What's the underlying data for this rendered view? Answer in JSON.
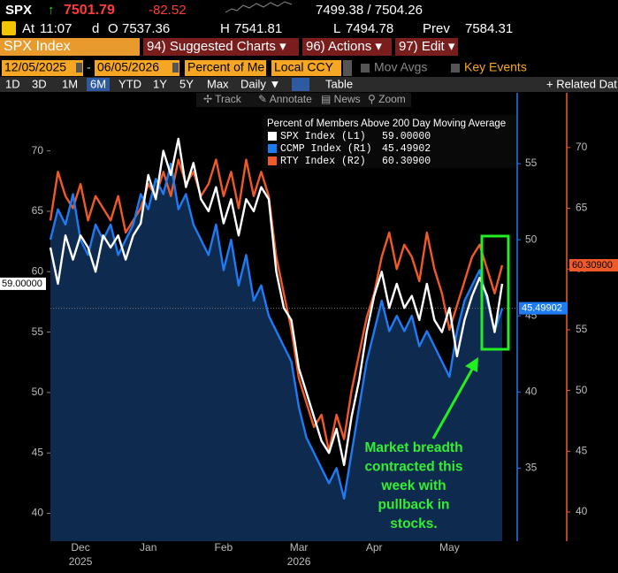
{
  "header": {
    "ticker": "SPX",
    "arrow": "↑",
    "last": "7501.79",
    "change": "-82.52",
    "bid_ask": "7499.38 / 7504.26",
    "at_label": "At",
    "time": "11:07",
    "d": "d",
    "open_label": "O",
    "open": "7537.36",
    "high_label": "H",
    "high": "7541.81",
    "low_label": "L",
    "low": "7494.78",
    "prev_label": "Prev",
    "prev": "7584.31"
  },
  "menu": {
    "security": "SPX Index",
    "tabs": [
      "94) Suggested Charts ▾",
      "96) Actions ▾",
      "97) Edit ▾"
    ]
  },
  "controls": {
    "start_date": "12/05/2025",
    "end_date": "06/05/2026",
    "field": "Percent of Me",
    "currency": "Local CCY",
    "mov_avgs": "Mov Avgs",
    "key_events": "Key Events"
  },
  "periods": {
    "items": [
      "1D",
      "3D",
      "1M",
      "6M",
      "YTD",
      "1Y",
      "5Y",
      "Max"
    ],
    "selected": "6M",
    "frequency": "Daily ▼",
    "table": "Table",
    "related": "+ Related Dat"
  },
  "tools": [
    "✢ Track",
    "✎ Annotate",
    "▤ News",
    "⚲ Zoom"
  ],
  "chart_data": {
    "type": "line",
    "legend_title": "Percent of Members Above 200 Day Moving Average",
    "categories": [
      null,
      null,
      null,
      null,
      "Dec",
      null,
      null,
      null,
      null,
      null,
      null,
      null,
      null,
      "Jan",
      null,
      null,
      null,
      null,
      null,
      null,
      null,
      null,
      null,
      "Feb",
      null,
      null,
      null,
      null,
      null,
      null,
      null,
      null,
      null,
      "Mar",
      null,
      null,
      null,
      null,
      null,
      null,
      null,
      null,
      null,
      "Apr",
      null,
      null,
      null,
      null,
      null,
      null,
      null,
      null,
      null,
      "May",
      null,
      null,
      null,
      null,
      null,
      null,
      null
    ],
    "category_sublabels": [
      null,
      null,
      null,
      null,
      "2025",
      null,
      null,
      null,
      null,
      null,
      null,
      null,
      null,
      null,
      null,
      null,
      null,
      null,
      null,
      null,
      null,
      null,
      null,
      null,
      null,
      null,
      null,
      null,
      null,
      null,
      null,
      null,
      null,
      "2026",
      null,
      null,
      null,
      null,
      null,
      null,
      null,
      null,
      null,
      null,
      null,
      null,
      null,
      null,
      null,
      null,
      null,
      null,
      null,
      null,
      null,
      null,
      null,
      null,
      null,
      null,
      null
    ],
    "series": [
      {
        "name": "SPX Index (L1)",
        "color": "#ffffff",
        "axis": "y",
        "last_value_label": "59.00000",
        "values": [
          62,
          59,
          63,
          61,
          63,
          62,
          60,
          63,
          62,
          63,
          61,
          63,
          64,
          68,
          66,
          70,
          68,
          71,
          67,
          69,
          66,
          65,
          67,
          64,
          66,
          63,
          66,
          65,
          67,
          66,
          60,
          57,
          56,
          52,
          50,
          48,
          46,
          45,
          47,
          44,
          48,
          51,
          55,
          58,
          60,
          57,
          59,
          57,
          58,
          56,
          59,
          56,
          55,
          57,
          53,
          56,
          58,
          59.5,
          58,
          55,
          59
        ]
      },
      {
        "name": "CCMP Index (R1)",
        "color": "#1f7bf2",
        "axis": "y2",
        "last_value_label": "45.49902",
        "values": [
          50,
          52,
          51,
          53,
          50,
          49,
          51,
          50,
          51,
          49,
          50,
          51,
          53,
          52,
          54,
          53,
          55,
          52,
          53,
          51,
          50,
          49,
          51,
          48,
          50,
          47,
          49,
          46,
          47,
          45,
          44,
          43,
          42,
          39,
          37,
          36,
          35,
          34,
          35,
          33,
          36,
          39,
          42,
          44,
          46,
          44,
          45,
          44,
          45,
          43,
          44,
          43,
          42,
          41,
          44,
          46,
          47,
          48,
          46,
          44,
          45.49902
        ]
      },
      {
        "name": "RTY Index (R2)",
        "color": "#f05a28",
        "axis": "y3",
        "last_value_label": "60.30900",
        "values": [
          64,
          68,
          66,
          65,
          67,
          64,
          66,
          65,
          64,
          66,
          63,
          64,
          65,
          67,
          66,
          68,
          66,
          69,
          67,
          68,
          66,
          67,
          69,
          66,
          68,
          65,
          69,
          66,
          68,
          66,
          61,
          58,
          55,
          51,
          49,
          47,
          48,
          45,
          48,
          46,
          50,
          53,
          56,
          58,
          61,
          63,
          60,
          62,
          61,
          59,
          63,
          60,
          58,
          55,
          57,
          59,
          61,
          62,
          60,
          58,
          60.309
        ]
      }
    ],
    "ylim": [
      37.7,
      74.8
    ],
    "yticks": [
      40,
      45,
      50,
      55,
      60,
      65,
      70
    ],
    "y2lim": [
      30.2,
      59.65
    ],
    "y2ticks": [
      35,
      40,
      45,
      50,
      55
    ],
    "y3lim": [
      37.6,
      74.5
    ],
    "y3ticks": [
      40,
      45,
      50,
      55,
      60,
      65,
      70
    ],
    "annotation": [
      "Market breadth",
      "contracted this",
      "week with",
      "pullback in",
      "stocks."
    ]
  }
}
